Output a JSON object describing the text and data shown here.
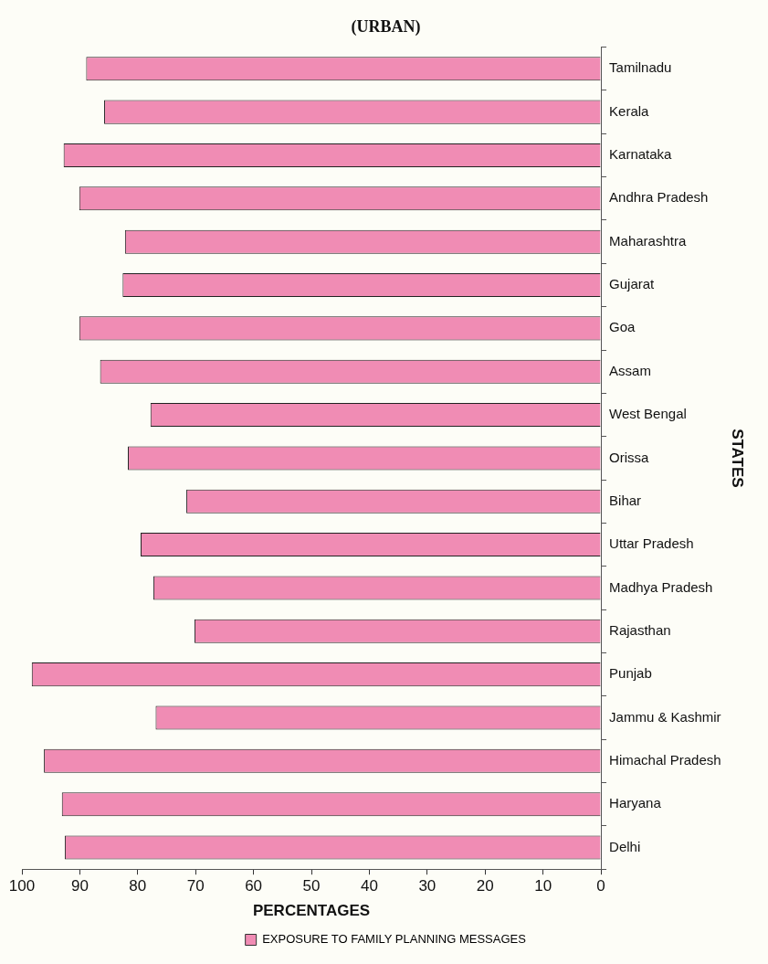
{
  "chart_data": {
    "type": "bar",
    "orientation": "horizontal",
    "title": "(URBAN)",
    "xlabel": "PERCENTAGES",
    "ylabel": "STATES",
    "categories": [
      "Tamilnadu",
      "Kerala",
      "Karnataka",
      "Andhra Pradesh",
      "Maharashtra",
      "Gujarat",
      "Goa",
      "Assam",
      "West Bengal",
      "Orissa",
      "Bihar",
      "Uttar Pradesh",
      "Madhya Pradesh",
      "Rajasthan",
      "Punjab",
      "Jammu & Kashmir",
      "Himachal Pradesh",
      "Haryana",
      "Delhi"
    ],
    "series": [
      {
        "name": "EXPOSURE TO FAMILY PLANNING MESSAGES",
        "color": "#f08cb4",
        "values": [
          88.9,
          85.8,
          92.8,
          90.1,
          82.2,
          82.6,
          90.1,
          86.5,
          77.8,
          81.7,
          71.6,
          79.5,
          77.3,
          70.2,
          98.3,
          76.9,
          96.2,
          93.1,
          92.6
        ]
      }
    ],
    "xlim": [
      100,
      0
    ],
    "xticks": [
      0,
      10,
      20,
      30,
      40,
      50,
      60,
      70,
      80,
      90,
      100
    ],
    "grid": false,
    "legend": "bottom"
  }
}
